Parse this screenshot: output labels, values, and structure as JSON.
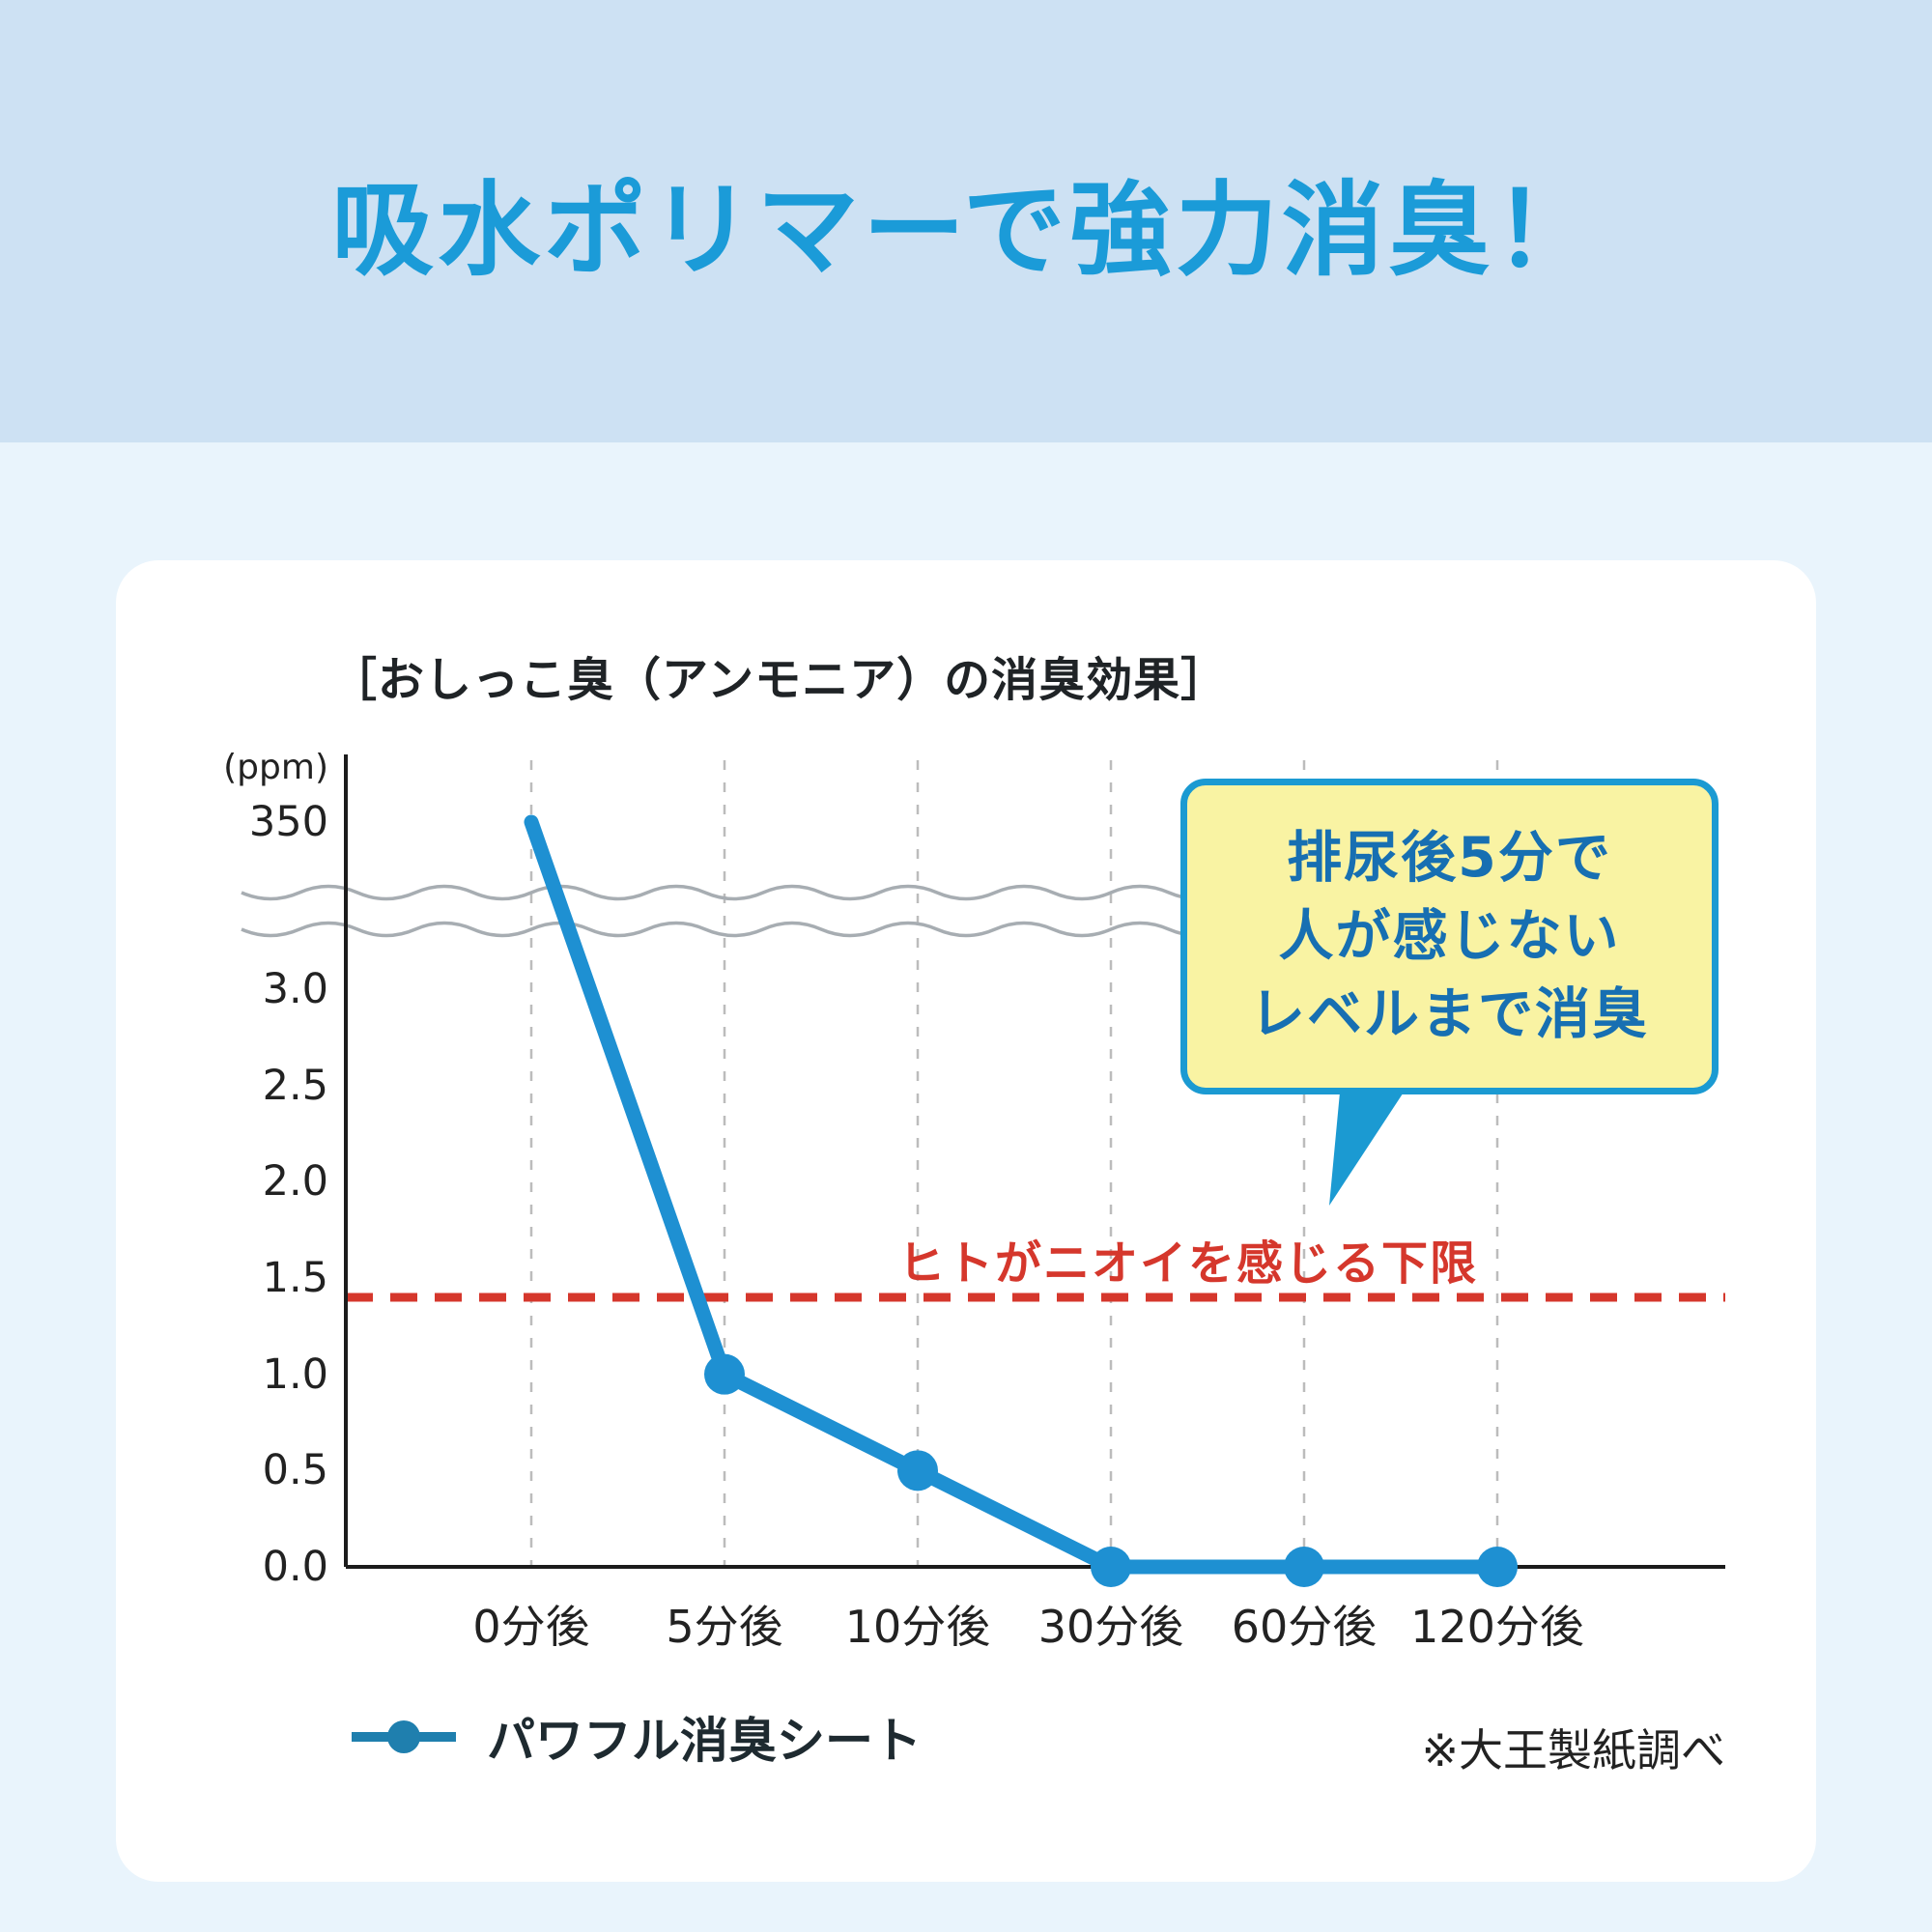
{
  "header": {
    "title": "吸水ポリマーで強力消臭！"
  },
  "colors": {
    "header_bg": "#cde1f3",
    "page_bg": "#e9f4fc",
    "title_blue": "#1b9bd8",
    "line_blue": "#1e90d2",
    "legend_blue": "#1f7fae",
    "axis_black": "#1c1c1c",
    "grid_gray": "#bcbcbc",
    "break_gray": "#a7adb2",
    "threshold_red": "#d5372c",
    "callout_bg": "#f9f3a3",
    "callout_border": "#1b9ad2",
    "callout_text": "#176fb2"
  },
  "chart_data": {
    "type": "line",
    "title": "［おしっこ臭（アンモニア）の消臭効果］",
    "unit_label": "(ppm)",
    "categories": [
      "0分後",
      "5分後",
      "10分後",
      "30分後",
      "60分後",
      "120分後"
    ],
    "series": [
      {
        "name": "パワフル消臭シート",
        "values": [
          350,
          1.0,
          0.5,
          0.0,
          0.0,
          0.0
        ]
      }
    ],
    "y_ticks": [
      {
        "label": "350",
        "value": 350
      },
      {
        "label": "3.0",
        "value": 3.0
      },
      {
        "label": "2.5",
        "value": 2.5
      },
      {
        "label": "2.0",
        "value": 2.0
      },
      {
        "label": "1.5",
        "value": 1.5
      },
      {
        "label": "1.0",
        "value": 1.0
      },
      {
        "label": "0.5",
        "value": 0.5
      },
      {
        "label": "0.0",
        "value": 0.0
      }
    ],
    "ylim": [
      0,
      3.0
    ],
    "axis_break": true,
    "grid": "vertical-dashed",
    "threshold": {
      "value": 1.4,
      "label": "ヒトがニオイを感じる下限"
    },
    "annotation": {
      "lines": [
        "排尿後5分で",
        "人が感じない",
        "レベルまで消臭"
      ]
    },
    "legend_position": "bottom-left",
    "note": "※大王製紙調べ"
  }
}
